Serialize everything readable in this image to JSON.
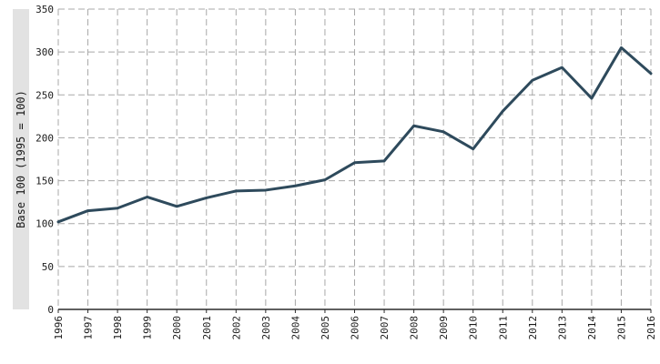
{
  "chart_data": {
    "type": "line",
    "title": "",
    "xlabel": "",
    "ylabel": "Base 100 (1995 = 100)",
    "x": [
      "1996",
      "1997",
      "1998",
      "1999",
      "2000",
      "2001",
      "2002",
      "2003",
      "2004",
      "2005",
      "2006",
      "2007",
      "2008",
      "2009",
      "2010",
      "2011",
      "2012",
      "2013",
      "2014",
      "2015",
      "2016"
    ],
    "series": [
      {
        "color": "#2e4a5c",
        "values": [
          102,
          115,
          118,
          131,
          120,
          130,
          138,
          139,
          144,
          151,
          171,
          173,
          214,
          207,
          187,
          231,
          267,
          282,
          246,
          305,
          275
        ]
      }
    ],
    "ylim": [
      0,
      350
    ],
    "yticks": [
      "0",
      "50",
      "100",
      "150",
      "200",
      "250",
      "300",
      "350"
    ],
    "grid": true,
    "legend": "none"
  }
}
